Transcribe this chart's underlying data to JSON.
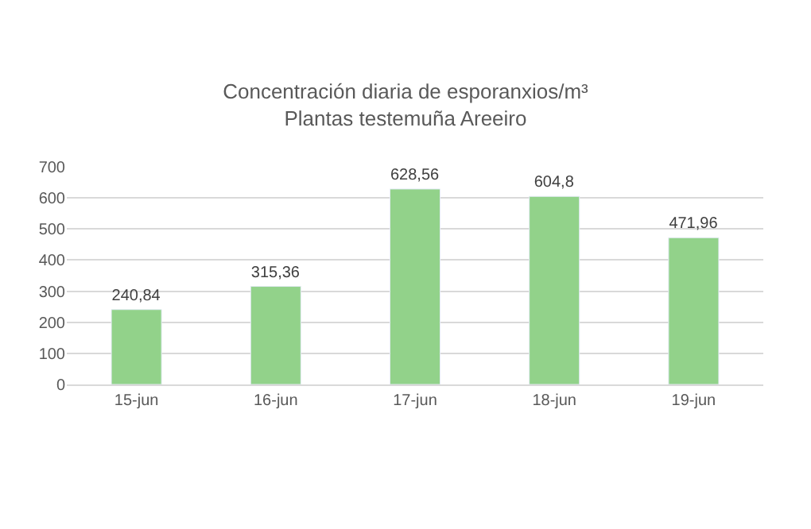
{
  "chart_data": {
    "type": "bar",
    "title": "Concentración diaria de esporanxios/m³",
    "subtitle": "Plantas testemuña Areeiro",
    "categories": [
      "15-jun",
      "16-jun",
      "17-jun",
      "18-jun",
      "19-jun"
    ],
    "values": [
      240.84,
      315.36,
      628.56,
      604.8,
      471.96
    ],
    "value_labels": [
      "240,84",
      "315,36",
      "628,56",
      "604,8",
      "471,96"
    ],
    "color": "#92d28a",
    "ylim": [
      0,
      700
    ],
    "yticks": [
      0,
      100,
      200,
      300,
      400,
      500,
      600,
      700
    ],
    "grid": "y",
    "legend": false
  }
}
